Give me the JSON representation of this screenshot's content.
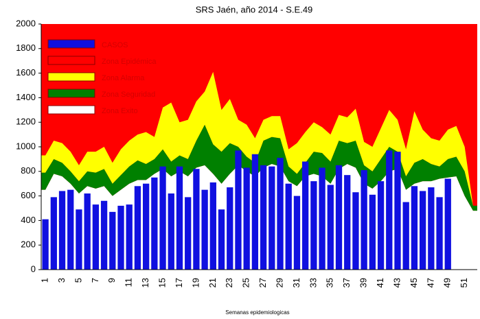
{
  "chart_data": {
    "type": "epidemic-channel",
    "title": "SRS Jaén, año 2014 - S.E.49",
    "x_label": "Semanas epidemiologicas",
    "categories": [
      1,
      null,
      3,
      null,
      5,
      null,
      7,
      null,
      9,
      null,
      11,
      null,
      13,
      null,
      15,
      null,
      17,
      null,
      19,
      null,
      21,
      null,
      23,
      null,
      25,
      null,
      27,
      null,
      29,
      null,
      31,
      null,
      33,
      null,
      35,
      null,
      37,
      null,
      39,
      null,
      41,
      null,
      43,
      null,
      45,
      null,
      47,
      null,
      49,
      null,
      51,
      null
    ],
    "ylim": [
      0,
      2000
    ],
    "yticks": [
      0,
      200,
      400,
      600,
      800,
      1000,
      1200,
      1400,
      1600,
      1800,
      2000
    ],
    "series": [
      {
        "name": "CASOS",
        "color": "#1010e0",
        "values": [
          410,
          590,
          640,
          650,
          490,
          620,
          530,
          560,
          470,
          520,
          530,
          680,
          700,
          750,
          840,
          620,
          840,
          590,
          820,
          650,
          710,
          490,
          670,
          970,
          830,
          940,
          850,
          840,
          910,
          700,
          600,
          880,
          720,
          830,
          690,
          850,
          770,
          630,
          810,
          610,
          720,
          970,
          960,
          550,
          680,
          640,
          670,
          590,
          740,
          null,
          null,
          null
        ]
      },
      {
        "name": "Zona Epidémica",
        "color": "#ff0000"
      },
      {
        "name": "Zona Alarma",
        "color": "#ffff00",
        "stack": true,
        "values": [
          140,
          150,
          160,
          160,
          130,
          160,
          170,
          180,
          170,
          210,
          210,
          210,
          260,
          180,
          340,
          480,
          270,
          320,
          320,
          270,
          590,
          340,
          360,
          220,
          260,
          200,
          170,
          170,
          180,
          140,
          250,
          250,
          240,
          210,
          220,
          210,
          210,
          260,
          190,
          200,
          250,
          300,
          260,
          220,
          420,
          240,
          210,
          210,
          240,
          250,
          200,
          0
        ]
      },
      {
        "name": "Zona Seguridad",
        "color": "#008000",
        "stack": true,
        "values": [
          140,
          120,
          110,
          100,
          100,
          120,
          130,
          140,
          100,
          120,
          140,
          160,
          130,
          120,
          160,
          120,
          130,
          140,
          220,
          330,
          240,
          260,
          250,
          150,
          120,
          110,
          220,
          220,
          230,
          120,
          100,
          110,
          180,
          190,
          180,
          230,
          170,
          220,
          150,
          140,
          180,
          200,
          140,
          110,
          170,
          180,
          140,
          100,
          150,
          160,
          200,
          40
        ]
      },
      {
        "name": "Zona Exito",
        "color": "#ffffff",
        "stack": true,
        "values": [
          650,
          780,
          760,
          700,
          620,
          680,
          660,
          680,
          600,
          650,
          700,
          730,
          730,
          780,
          820,
          760,
          800,
          760,
          830,
          850,
          780,
          700,
          780,
          850,
          800,
          760,
          830,
          860,
          840,
          720,
          680,
          760,
          780,
          760,
          700,
          820,
          860,
          830,
          700,
          660,
          720,
          800,
          820,
          650,
          700,
          720,
          720,
          740,
          750,
          760,
          600,
          480
        ]
      }
    ]
  }
}
